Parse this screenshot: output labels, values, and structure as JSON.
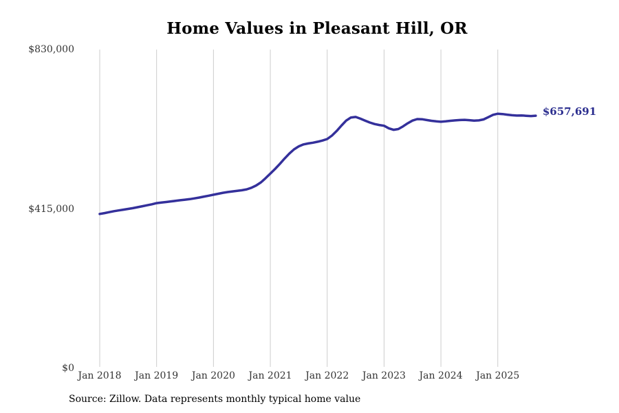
{
  "page": {
    "background": "#ffffff"
  },
  "header": {
    "title": "Home Values in Pleasant Hill, OR"
  },
  "footer": {
    "source_text": "Source: Zillow. Data represents monthly typical home value"
  },
  "chart_data": {
    "type": "line",
    "title": "Home Values in Pleasant Hill, OR",
    "series_name": "Monthly typical home value",
    "frequency": "monthly",
    "start_month": "2018-01",
    "end_month": "2025-09",
    "values": [
      402000,
      404000,
      406500,
      409000,
      411000,
      413000,
      415000,
      417000,
      419500,
      422000,
      424500,
      427000,
      430000,
      431500,
      433000,
      434500,
      436000,
      437500,
      439000,
      440500,
      442500,
      444500,
      447000,
      449500,
      452000,
      454500,
      457000,
      459000,
      460500,
      462000,
      463500,
      466000,
      470000,
      476000,
      484000,
      495000,
      507000,
      519000,
      532000,
      546000,
      559000,
      570000,
      578000,
      583000,
      585500,
      587500,
      590000,
      593000,
      597000,
      606000,
      618000,
      632000,
      645000,
      653000,
      654500,
      650000,
      645000,
      640000,
      636000,
      633500,
      631500,
      625000,
      621000,
      623000,
      630000,
      638000,
      645000,
      649000,
      648500,
      646500,
      644500,
      643000,
      642000,
      643000,
      644500,
      645500,
      646500,
      647000,
      646000,
      645000,
      645500,
      648000,
      654000,
      660000,
      663000,
      662000,
      660500,
      659000,
      658000,
      658500,
      657500,
      656800,
      657691
    ],
    "x_tick_labels": [
      "Jan 2018",
      "Jan 2019",
      "Jan 2020",
      "Jan 2021",
      "Jan 2022",
      "Jan 2023",
      "Jan 2024",
      "Jan 2025"
    ],
    "y_ticks": [
      {
        "label": "$830,000",
        "value": 830000
      },
      {
        "label": "$415,000",
        "value": 415000
      },
      {
        "label": "$0",
        "value": 0
      }
    ],
    "ylim": [
      0,
      830000
    ],
    "grid": "vertical-only",
    "legend": "none",
    "line_color": "#34309b",
    "grid_color": "#cccccc",
    "tick_color": "#333333",
    "end_label": {
      "text": "$657,691",
      "value": 657691,
      "color": "#2b2e8f"
    }
  }
}
